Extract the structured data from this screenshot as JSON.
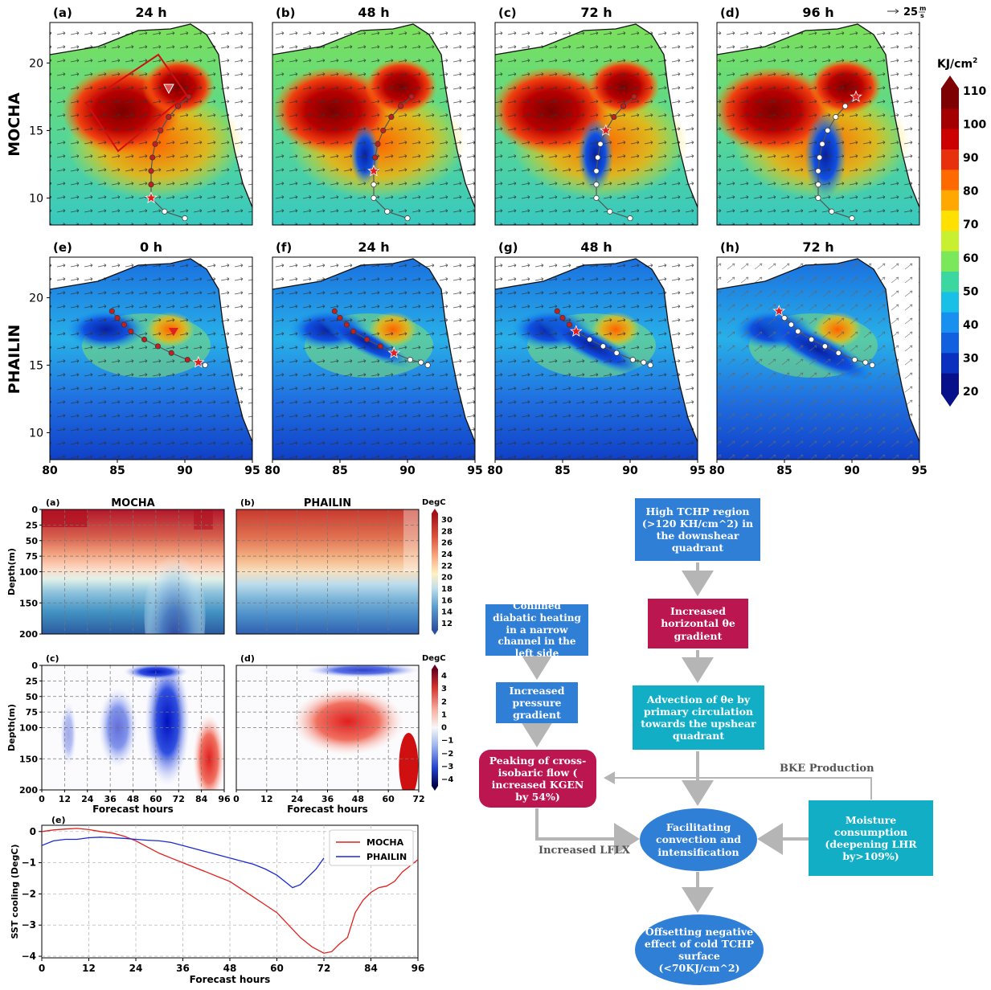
{
  "maps": {
    "rows": [
      {
        "name": "MOCHA",
        "panels": [
          {
            "tag": "(a)",
            "title": "24 h"
          },
          {
            "tag": "(b)",
            "title": "48 h"
          },
          {
            "tag": "(c)",
            "title": "72 h"
          },
          {
            "tag": "(d)",
            "title": "96 h"
          }
        ]
      },
      {
        "name": "PHAILIN",
        "panels": [
          {
            "tag": "(e)",
            "title": "0 h"
          },
          {
            "tag": "(f)",
            "title": "24 h"
          },
          {
            "tag": "(g)",
            "title": "48 h"
          },
          {
            "tag": "(h)",
            "title": "72 h"
          }
        ]
      }
    ],
    "lat_ticks": [
      "20",
      "15",
      "10"
    ],
    "lon_ticks": [
      "80",
      "85",
      "90",
      "95"
    ],
    "wind_ref": "25",
    "wind_ref_unit_num": "m",
    "wind_ref_unit_den": "s",
    "colorbar": {
      "unit": "KJ/cm",
      "unit_sup": "2",
      "ticks": [
        "110",
        "100",
        "90",
        "80",
        "70",
        "60",
        "50",
        "40",
        "30",
        "20"
      ],
      "colors": [
        "#7f0000",
        "#a50000",
        "#cc0000",
        "#e8300c",
        "#ff6a00",
        "#ffa800",
        "#ffe000",
        "#c8f030",
        "#7ae85a",
        "#3ad8a0",
        "#18c0e8",
        "#1890f0",
        "#1060e0",
        "#0a30c0",
        "#08108a"
      ]
    }
  },
  "section": {
    "panels": [
      {
        "tag": "(a)",
        "title": "MOCHA"
      },
      {
        "tag": "(b)",
        "title": "PHAILIN"
      },
      {
        "tag": "(c)",
        "title": ""
      },
      {
        "tag": "(d)",
        "title": ""
      }
    ],
    "depth_label": "Depth(m)",
    "depth_ticks": [
      "0",
      "25",
      "50",
      "75",
      "100",
      "150",
      "200"
    ],
    "x_mocha_ticks": [
      "0",
      "12",
      "24",
      "36",
      "48",
      "60",
      "72",
      "84",
      "96"
    ],
    "x_phailin_ticks": [
      "0",
      "12",
      "24",
      "36",
      "48",
      "60",
      "72"
    ],
    "xlabel": "Forecast hours",
    "cbar_top": {
      "unit": "DegC",
      "ticks": [
        "30",
        "28",
        "26",
        "24",
        "22",
        "20",
        "18",
        "16",
        "14",
        "12"
      ]
    },
    "cbar_bottom": {
      "unit": "DegC",
      "ticks": [
        "4",
        "3",
        "2",
        "1",
        "0",
        "−1",
        "−2",
        "−3",
        "−4"
      ]
    }
  },
  "chart_data": {
    "type": "line",
    "tag": "(e)",
    "xlabel": "Forecast hours",
    "ylabel": "SST cooling (DegC)",
    "xlim": [
      0,
      96
    ],
    "ylim": [
      -4.05,
      0.2
    ],
    "xticks": [
      0,
      12,
      24,
      36,
      48,
      60,
      72,
      84,
      96
    ],
    "yticks": [
      0,
      -1,
      -2,
      -3,
      -4
    ],
    "grid": true,
    "legend": "top-right",
    "series": [
      {
        "name": "MOCHA",
        "color": "#e0201c",
        "x": [
          0,
          3,
          6,
          9,
          12,
          15,
          18,
          21,
          24,
          27,
          30,
          33,
          36,
          39,
          42,
          45,
          48,
          51,
          54,
          57,
          60,
          63,
          66,
          69,
          72,
          74,
          76,
          78,
          80,
          82,
          84,
          86,
          88,
          90,
          92,
          94,
          96
        ],
        "y": [
          0.0,
          0.05,
          0.08,
          0.1,
          0.06,
          0.0,
          -0.05,
          -0.15,
          -0.3,
          -0.5,
          -0.7,
          -0.85,
          -1.0,
          -1.15,
          -1.3,
          -1.45,
          -1.6,
          -1.85,
          -2.1,
          -2.35,
          -2.6,
          -3.0,
          -3.4,
          -3.7,
          -3.9,
          -3.85,
          -3.6,
          -3.4,
          -2.6,
          -2.2,
          -1.95,
          -1.8,
          -1.75,
          -1.6,
          -1.3,
          -1.1,
          -0.9
        ]
      },
      {
        "name": "PHAILIN",
        "color": "#1a2ad0",
        "x": [
          0,
          3,
          6,
          9,
          12,
          15,
          18,
          21,
          24,
          27,
          30,
          33,
          36,
          39,
          42,
          45,
          48,
          51,
          54,
          57,
          60,
          62,
          64,
          66,
          68,
          70,
          72
        ],
        "y": [
          -0.45,
          -0.3,
          -0.25,
          -0.25,
          -0.2,
          -0.18,
          -0.2,
          -0.22,
          -0.25,
          -0.28,
          -0.3,
          -0.35,
          -0.45,
          -0.55,
          -0.65,
          -0.75,
          -0.85,
          -0.95,
          -1.05,
          -1.2,
          -1.4,
          -1.6,
          -1.8,
          -1.7,
          -1.45,
          -1.2,
          -0.85
        ]
      }
    ]
  },
  "flowchart": {
    "high_tchp": "High TCHP region (>120 KH/cm^2) in the downshear quadrant",
    "theta_gradient": "Increased horizontal  θe gradient",
    "advection": "Advection of θe by primary circulation towards the upshear quadrant",
    "confined": "Confined diabatic heating in a narrow channel in the left side",
    "pressure": "Increased pressure gradient",
    "peaking": "Peaking of cross-isobaric flow ( increased KGEN by 54%)",
    "facilitating": "Facilitating convection and intensification",
    "moisture": "Moisture consumption (deepening LHR by>109%)",
    "offsetting": "Offsetting negative effect of cold TCHP surface (<70KJ/cm^2)",
    "bke_label": "BKE Production",
    "lflx_label": "Increased LFLX"
  }
}
